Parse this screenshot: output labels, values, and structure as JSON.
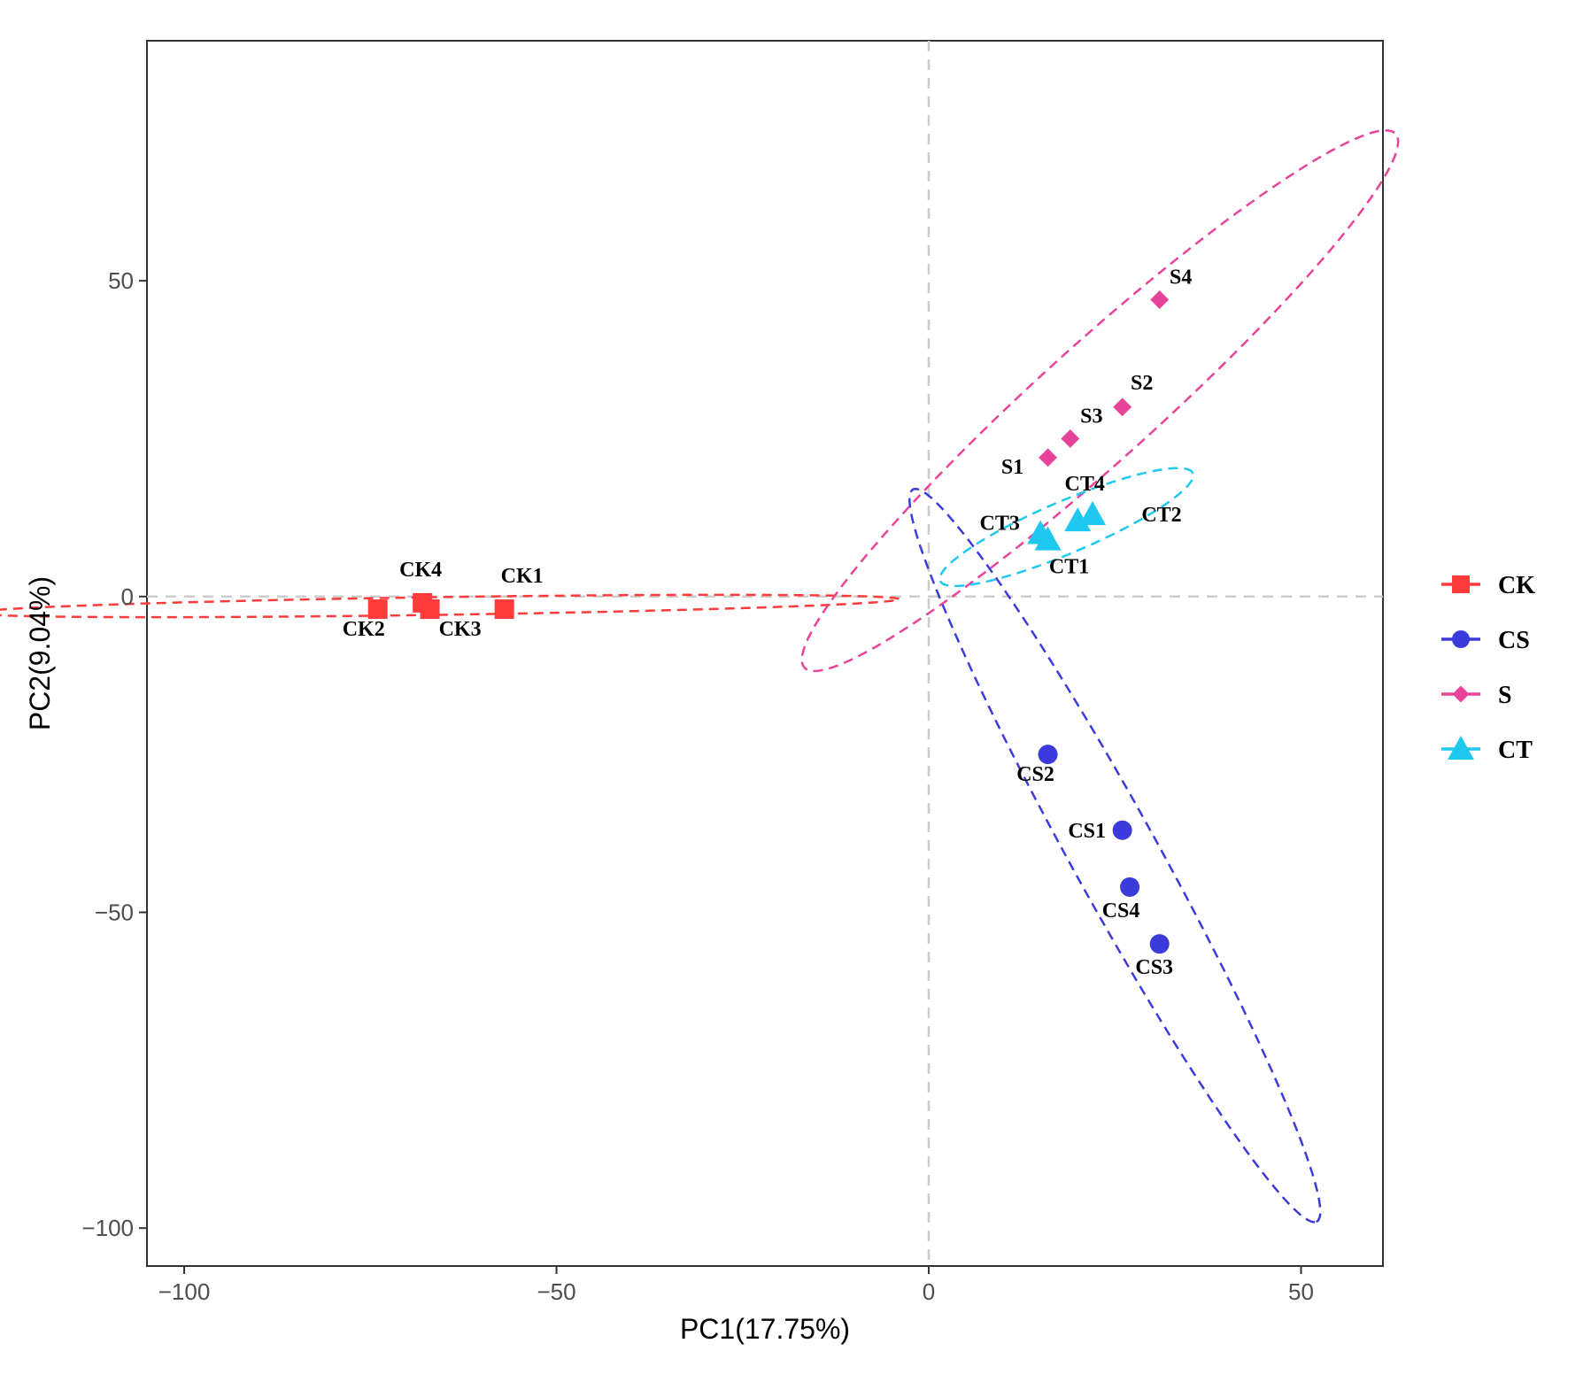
{
  "chart_data": {
    "type": "scatter",
    "title": "",
    "xlabel": "PC1(17.75%)",
    "ylabel": "PC2(9.04%)",
    "xlim": [
      -105,
      61
    ],
    "ylim": [
      -106,
      88
    ],
    "x_ticks": [
      -100,
      -50,
      0,
      50
    ],
    "x_tick_labels": [
      "−100",
      "−50",
      "0",
      "50"
    ],
    "y_ticks": [
      -100,
      -50,
      0,
      50
    ],
    "y_tick_labels": [
      "−100",
      "−50",
      "0",
      "50"
    ],
    "grid": false,
    "reference_lines": {
      "x": 0,
      "y": 0,
      "style": "dashed",
      "color": "#cccccc"
    },
    "legend_position": "right",
    "series": [
      {
        "name": "CK",
        "color": "#ff3b3b",
        "marker": "square",
        "points": [
          {
            "label": "CK1",
            "x": -57,
            "y": -2
          },
          {
            "label": "CK2",
            "x": -74,
            "y": -2
          },
          {
            "label": "CK3",
            "x": -67,
            "y": -2
          },
          {
            "label": "CK4",
            "x": -68,
            "y": -1
          }
        ],
        "ellipse": {
          "cx": -66,
          "cy": -1.5,
          "rx": 62,
          "ry": 1.4,
          "angle": 1
        }
      },
      {
        "name": "CS",
        "color": "#3b3bdb",
        "marker": "circle",
        "points": [
          {
            "label": "CS1",
            "x": 26,
            "y": -37
          },
          {
            "label": "CS2",
            "x": 16,
            "y": -25
          },
          {
            "label": "CS3",
            "x": 31,
            "y": -55
          },
          {
            "label": "CS4",
            "x": 27,
            "y": -46
          }
        ],
        "ellipse": {
          "cx": 25,
          "cy": -41,
          "rx": 64,
          "ry": 6,
          "angle": -65
        }
      },
      {
        "name": "S",
        "color": "#e8439a",
        "marker": "diamond",
        "points": [
          {
            "label": "S1",
            "x": 16,
            "y": 22
          },
          {
            "label": "S2",
            "x": 26,
            "y": 30
          },
          {
            "label": "S3",
            "x": 19,
            "y": 25
          },
          {
            "label": "S4",
            "x": 31,
            "y": 47
          }
        ],
        "ellipse": {
          "cx": 23,
          "cy": 31,
          "rx": 58,
          "ry": 8.5,
          "angle": 47
        }
      },
      {
        "name": "CT",
        "color": "#1ec8ee",
        "marker": "triangle",
        "points": [
          {
            "label": "CT1",
            "x": 16,
            "y": 9
          },
          {
            "label": "CT2",
            "x": 22,
            "y": 13
          },
          {
            "label": "CT3",
            "x": 15,
            "y": 10
          },
          {
            "label": "CT4",
            "x": 20,
            "y": 12
          }
        ],
        "ellipse": {
          "cx": 18.5,
          "cy": 11,
          "rx": 19,
          "ry": 4,
          "angle": 27
        }
      }
    ]
  }
}
